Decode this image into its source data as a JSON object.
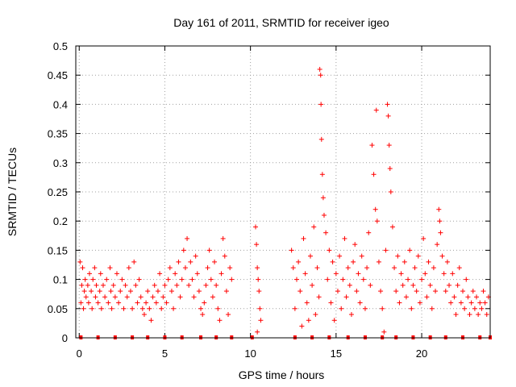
{
  "chart_data": {
    "type": "scatter",
    "title": "Day 161 of 2011, SRMTID for receiver igeo",
    "xlabel": "GPS time / hours",
    "ylabel": "SRMTID / TECUs",
    "xlim": [
      -0.2,
      24
    ],
    "ylim": [
      0,
      0.5
    ],
    "x_ticks": [
      0,
      5,
      10,
      15,
      20
    ],
    "x_tick_labels": [
      "0",
      "5",
      "10",
      "15",
      "20"
    ],
    "y_ticks": [
      0,
      0.05,
      0.1,
      0.15,
      0.2,
      0.25,
      0.3,
      0.35,
      0.4,
      0.45,
      0.5
    ],
    "y_tick_labels": [
      "0",
      "0.05",
      "0.1",
      "0.15",
      "0.2",
      "0.25",
      "0.3",
      "0.35",
      "0.4",
      "0.45",
      "0.5"
    ],
    "grid": true,
    "marker": "plus",
    "color": "#ff0000",
    "series": [
      {
        "name": "SRMTID",
        "points": [
          [
            0.05,
            0.13
          ],
          [
            0.1,
            0.06
          ],
          [
            0.15,
            0.09
          ],
          [
            0.2,
            0.12
          ],
          [
            0.25,
            0.05
          ],
          [
            0.3,
            0.08
          ],
          [
            0.35,
            0.1
          ],
          [
            0.4,
            0.07
          ],
          [
            0.5,
            0.09
          ],
          [
            0.55,
            0.06
          ],
          [
            0.6,
            0.11
          ],
          [
            0.7,
            0.08
          ],
          [
            0.75,
            0.05
          ],
          [
            0.8,
            0.1
          ],
          [
            0.9,
            0.12
          ],
          [
            0.95,
            0.07
          ],
          [
            1.0,
            0.09
          ],
          [
            1.1,
            0.06
          ],
          [
            1.2,
            0.08
          ],
          [
            1.25,
            0.11
          ],
          [
            1.3,
            0.05
          ],
          [
            1.4,
            0.09
          ],
          [
            1.5,
            0.07
          ],
          [
            1.6,
            0.1
          ],
          [
            1.7,
            0.06
          ],
          [
            1.8,
            0.12
          ],
          [
            1.85,
            0.08
          ],
          [
            1.9,
            0.05
          ],
          [
            2.0,
            0.09
          ],
          [
            2.1,
            0.07
          ],
          [
            2.2,
            0.11
          ],
          [
            2.3,
            0.06
          ],
          [
            2.4,
            0.08
          ],
          [
            2.5,
            0.1
          ],
          [
            2.6,
            0.05
          ],
          [
            2.7,
            0.09
          ],
          [
            2.8,
            0.07
          ],
          [
            2.9,
            0.12
          ],
          [
            3.0,
            0.08
          ],
          [
            3.1,
            0.05
          ],
          [
            3.2,
            0.13
          ],
          [
            3.3,
            0.09
          ],
          [
            3.4,
            0.06
          ],
          [
            3.5,
            0.1
          ],
          [
            3.6,
            0.07
          ],
          [
            3.7,
            0.05
          ],
          [
            3.8,
            0.04
          ],
          [
            3.9,
            0.06
          ],
          [
            4.0,
            0.08
          ],
          [
            4.1,
            0.05
          ],
          [
            4.2,
            0.03
          ],
          [
            4.3,
            0.07
          ],
          [
            4.4,
            0.09
          ],
          [
            4.5,
            0.06
          ],
          [
            4.6,
            0.08
          ],
          [
            4.7,
            0.11
          ],
          [
            4.8,
            0.05
          ],
          [
            4.9,
            0.07
          ],
          [
            5.0,
            0.09
          ],
          [
            5.1,
            0.06
          ],
          [
            5.2,
            0.1
          ],
          [
            5.3,
            0.12
          ],
          [
            5.4,
            0.08
          ],
          [
            5.5,
            0.05
          ],
          [
            5.6,
            0.11
          ],
          [
            5.7,
            0.09
          ],
          [
            5.8,
            0.13
          ],
          [
            5.9,
            0.07
          ],
          [
            6.0,
            0.1
          ],
          [
            6.1,
            0.15
          ],
          [
            6.2,
            0.12
          ],
          [
            6.3,
            0.17
          ],
          [
            6.4,
            0.09
          ],
          [
            6.5,
            0.13
          ],
          [
            6.6,
            0.1
          ],
          [
            6.7,
            0.07
          ],
          [
            6.8,
            0.14
          ],
          [
            6.9,
            0.11
          ],
          [
            7.0,
            0.08
          ],
          [
            7.1,
            0.05
          ],
          [
            7.2,
            0.04
          ],
          [
            7.3,
            0.06
          ],
          [
            7.4,
            0.09
          ],
          [
            7.5,
            0.12
          ],
          [
            7.6,
            0.15
          ],
          [
            7.7,
            0.1
          ],
          [
            7.8,
            0.07
          ],
          [
            7.9,
            0.13
          ],
          [
            8.0,
            0.09
          ],
          [
            8.1,
            0.05
          ],
          [
            8.2,
            0.03
          ],
          [
            8.3,
            0.11
          ],
          [
            8.4,
            0.17
          ],
          [
            8.5,
            0.14
          ],
          [
            8.6,
            0.08
          ],
          [
            8.7,
            0.04
          ],
          [
            8.8,
            0.12
          ],
          [
            8.9,
            0.1
          ],
          [
            10.3,
            0.19
          ],
          [
            10.35,
            0.16
          ],
          [
            10.4,
            0.12
          ],
          [
            10.45,
            0.1
          ],
          [
            10.5,
            0.08
          ],
          [
            10.55,
            0.05
          ],
          [
            10.6,
            0.03
          ],
          [
            10.4,
            0.01
          ],
          [
            12.4,
            0.15
          ],
          [
            12.5,
            0.12
          ],
          [
            12.6,
            0.05
          ],
          [
            12.7,
            0.1
          ],
          [
            12.8,
            0.13
          ],
          [
            12.9,
            0.08
          ],
          [
            13.0,
            0.02
          ],
          [
            13.1,
            0.17
          ],
          [
            13.2,
            0.11
          ],
          [
            13.3,
            0.06
          ],
          [
            13.4,
            0.03
          ],
          [
            13.5,
            0.14
          ],
          [
            13.6,
            0.09
          ],
          [
            13.7,
            0.19
          ],
          [
            13.8,
            0.04
          ],
          [
            13.9,
            0.12
          ],
          [
            14.0,
            0.07
          ],
          [
            14.05,
            0.46
          ],
          [
            14.1,
            0.45
          ],
          [
            14.12,
            0.4
          ],
          [
            14.15,
            0.34
          ],
          [
            14.2,
            0.28
          ],
          [
            14.25,
            0.24
          ],
          [
            14.3,
            0.21
          ],
          [
            14.4,
            0.18
          ],
          [
            14.5,
            0.1
          ],
          [
            14.6,
            0.15
          ],
          [
            14.7,
            0.06
          ],
          [
            14.8,
            0.13
          ],
          [
            14.9,
            0.03
          ],
          [
            15.0,
            0.11
          ],
          [
            15.1,
            0.08
          ],
          [
            15.2,
            0.14
          ],
          [
            15.3,
            0.05
          ],
          [
            15.4,
            0.1
          ],
          [
            15.5,
            0.17
          ],
          [
            15.6,
            0.07
          ],
          [
            15.7,
            0.12
          ],
          [
            15.8,
            0.09
          ],
          [
            15.9,
            0.04
          ],
          [
            16.0,
            0.13
          ],
          [
            16.1,
            0.16
          ],
          [
            16.2,
            0.08
          ],
          [
            16.3,
            0.11
          ],
          [
            16.4,
            0.06
          ],
          [
            16.5,
            0.14
          ],
          [
            16.6,
            0.1
          ],
          [
            16.7,
            0.05
          ],
          [
            16.8,
            0.12
          ],
          [
            16.9,
            0.18
          ],
          [
            17.0,
            0.09
          ],
          [
            17.1,
            0.33
          ],
          [
            17.2,
            0.28
          ],
          [
            17.3,
            0.22
          ],
          [
            17.35,
            0.39
          ],
          [
            17.4,
            0.2
          ],
          [
            17.5,
            0.13
          ],
          [
            17.6,
            0.08
          ],
          [
            17.7,
            0.05
          ],
          [
            17.8,
            0.01
          ],
          [
            17.9,
            0.15
          ],
          [
            18.0,
            0.4
          ],
          [
            18.05,
            0.38
          ],
          [
            18.1,
            0.33
          ],
          [
            18.15,
            0.29
          ],
          [
            18.2,
            0.25
          ],
          [
            18.3,
            0.19
          ],
          [
            18.4,
            0.12
          ],
          [
            18.5,
            0.08
          ],
          [
            18.6,
            0.14
          ],
          [
            18.7,
            0.06
          ],
          [
            18.8,
            0.11
          ],
          [
            18.9,
            0.09
          ],
          [
            19.0,
            0.13
          ],
          [
            19.1,
            0.07
          ],
          [
            19.2,
            0.1
          ],
          [
            19.3,
            0.15
          ],
          [
            19.4,
            0.05
          ],
          [
            19.5,
            0.09
          ],
          [
            19.6,
            0.12
          ],
          [
            19.7,
            0.08
          ],
          [
            19.8,
            0.14
          ],
          [
            19.9,
            0.06
          ],
          [
            20.0,
            0.1
          ],
          [
            20.1,
            0.17
          ],
          [
            20.2,
            0.11
          ],
          [
            20.3,
            0.07
          ],
          [
            20.4,
            0.13
          ],
          [
            20.5,
            0.09
          ],
          [
            20.6,
            0.05
          ],
          [
            20.7,
            0.12
          ],
          [
            20.8,
            0.08
          ],
          [
            20.9,
            0.16
          ],
          [
            21.0,
            0.22
          ],
          [
            21.05,
            0.2
          ],
          [
            21.1,
            0.18
          ],
          [
            21.2,
            0.14
          ],
          [
            21.3,
            0.11
          ],
          [
            21.4,
            0.08
          ],
          [
            21.5,
            0.13
          ],
          [
            21.6,
            0.09
          ],
          [
            21.7,
            0.06
          ],
          [
            21.8,
            0.11
          ],
          [
            21.9,
            0.07
          ],
          [
            22.0,
            0.04
          ],
          [
            22.1,
            0.09
          ],
          [
            22.2,
            0.12
          ],
          [
            22.3,
            0.06
          ],
          [
            22.4,
            0.08
          ],
          [
            22.5,
            0.05
          ],
          [
            22.6,
            0.1
          ],
          [
            22.7,
            0.07
          ],
          [
            22.8,
            0.04
          ],
          [
            22.9,
            0.06
          ],
          [
            23.0,
            0.08
          ],
          [
            23.1,
            0.05
          ],
          [
            23.2,
            0.07
          ],
          [
            23.3,
            0.04
          ],
          [
            23.4,
            0.06
          ],
          [
            23.5,
            0.05
          ],
          [
            23.6,
            0.08
          ],
          [
            23.7,
            0.06
          ],
          [
            23.8,
            0.04
          ],
          [
            23.9,
            0.07
          ]
        ]
      }
    ],
    "zero_markers_x": [
      0.1,
      1.1,
      2.1,
      3.1,
      4.0,
      5.0,
      6.0,
      7.1,
      8.0,
      8.9,
      10.1,
      12.6,
      13.6,
      14.6,
      15.7,
      16.7,
      17.7,
      18.5,
      19.5,
      20.5,
      21.4,
      22.4,
      23.4,
      24.0
    ]
  }
}
